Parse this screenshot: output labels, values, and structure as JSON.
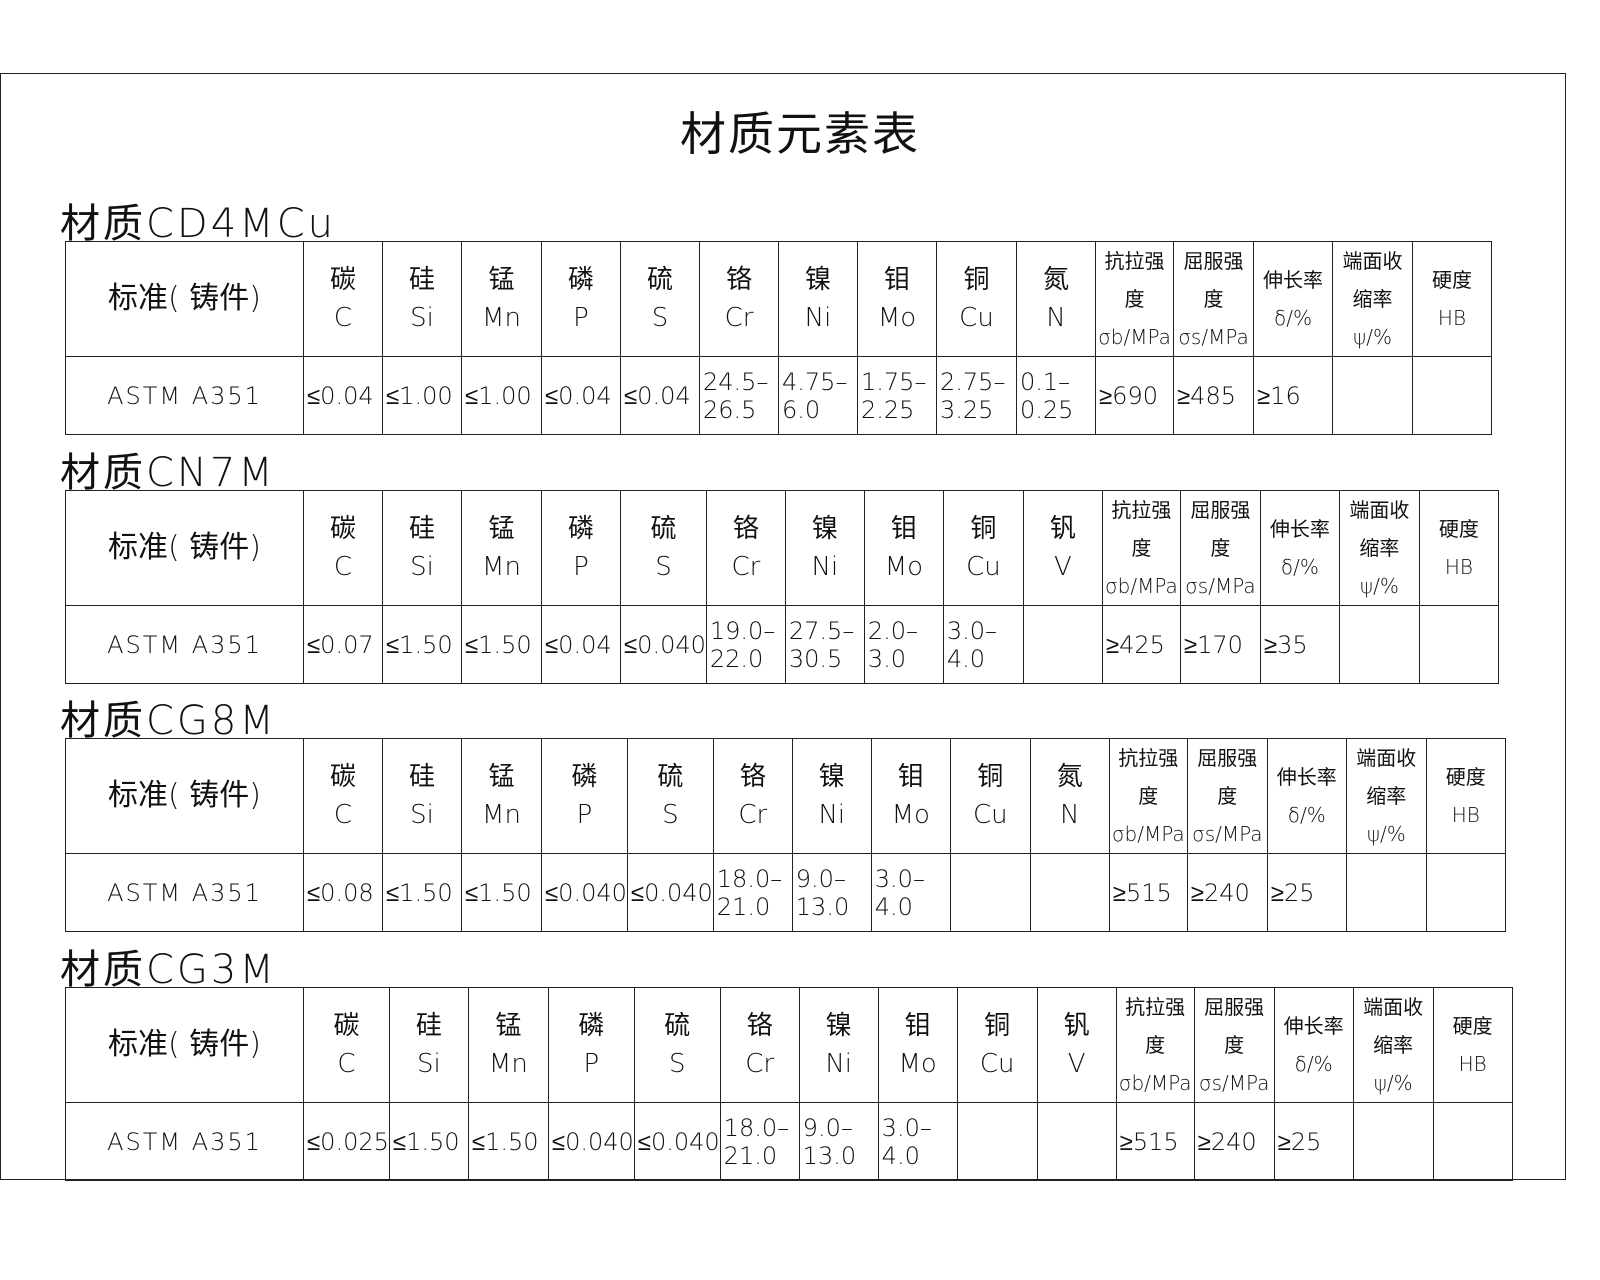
{
  "title": "材质元素表",
  "header": {
    "standard": "标准( 铸件)",
    "properties": [
      {
        "cn": "抗拉强度",
        "sym": "σb/MPa"
      },
      {
        "cn": "屈服强度",
        "sym": "σs/MPa"
      },
      {
        "cn": "伸长率",
        "sym": "δ/%"
      },
      {
        "cn": "端面收缩率",
        "sym": "ψ/%"
      },
      {
        "cn": "硬度",
        "sym": "HB"
      }
    ]
  },
  "sections": [
    {
      "title": "材质CD4MCu",
      "elements": [
        [
          "碳",
          "C"
        ],
        [
          "硅",
          "Si"
        ],
        [
          "锰",
          "Mn"
        ],
        [
          "磷",
          "P"
        ],
        [
          "硫",
          "S"
        ],
        [
          "铬",
          "Cr"
        ],
        [
          "镍",
          "Ni"
        ],
        [
          "钼",
          "Mo"
        ],
        [
          "铜",
          "Cu"
        ],
        [
          "氮",
          "N"
        ]
      ],
      "standard": "ASTM A351",
      "values": [
        "≤0.04",
        "≤1.00",
        "≤1.00",
        "≤0.04",
        "≤0.04",
        "24.5–\n26.5",
        "4.75–\n6.0",
        "1.75–\n2.25",
        "2.75–\n3.25",
        "0.1–\n0.25",
        "≥690",
        "≥485",
        "≥16",
        "",
        ""
      ]
    },
    {
      "title": "材质CN7M",
      "elements": [
        [
          "碳",
          "C"
        ],
        [
          "硅",
          "Si"
        ],
        [
          "锰",
          "Mn"
        ],
        [
          "磷",
          "P"
        ],
        [
          "硫",
          "S"
        ],
        [
          "铬",
          "Cr"
        ],
        [
          "镍",
          "Ni"
        ],
        [
          "钼",
          "Mo"
        ],
        [
          "铜",
          "Cu"
        ],
        [
          "钒",
          "V"
        ]
      ],
      "standard": "ASTM A351",
      "values": [
        "≤0.07",
        "≤1.50",
        "≤1.50",
        "≤0.04",
        "≤0.040",
        "19.0–\n22.0",
        "27.5–\n30.5",
        "2.0–\n3.0",
        "3.0–\n4.0",
        "",
        "≥425",
        "≥170",
        "≥35",
        "",
        ""
      ]
    },
    {
      "title": "材质CG8M",
      "elements": [
        [
          "碳",
          "C"
        ],
        [
          "硅",
          "Si"
        ],
        [
          "锰",
          "Mn"
        ],
        [
          "磷",
          "P"
        ],
        [
          "硫",
          "S"
        ],
        [
          "铬",
          "Cr"
        ],
        [
          "镍",
          "Ni"
        ],
        [
          "钼",
          "Mo"
        ],
        [
          "铜",
          "Cu"
        ],
        [
          "氮",
          "N"
        ]
      ],
      "standard": "ASTM A351",
      "values": [
        "≤0.08",
        "≤1.50",
        "≤1.50",
        "≤0.040",
        "≤0.040",
        "18.0–\n21.0",
        "9.0–\n13.0",
        "3.0–\n4.0",
        "",
        "",
        "≥515",
        "≥240",
        "≥25",
        "",
        ""
      ]
    },
    {
      "title": "材质CG3M",
      "elements": [
        [
          "碳",
          "C"
        ],
        [
          "硅",
          "Si"
        ],
        [
          "锰",
          "Mn"
        ],
        [
          "磷",
          "P"
        ],
        [
          "硫",
          "S"
        ],
        [
          "铬",
          "Cr"
        ],
        [
          "镍",
          "Ni"
        ],
        [
          "钼",
          "Mo"
        ],
        [
          "铜",
          "Cu"
        ],
        [
          "钒",
          "V"
        ]
      ],
      "standard": "ASTM A351",
      "values": [
        "≤0.025",
        "≤1.50",
        "≤1.50",
        "≤0.040",
        "≤0.040",
        "18.0–\n21.0",
        "9.0–\n13.0",
        "3.0–\n4.0",
        "",
        "",
        "≥515",
        "≥240",
        "≥25",
        "",
        ""
      ]
    }
  ]
}
